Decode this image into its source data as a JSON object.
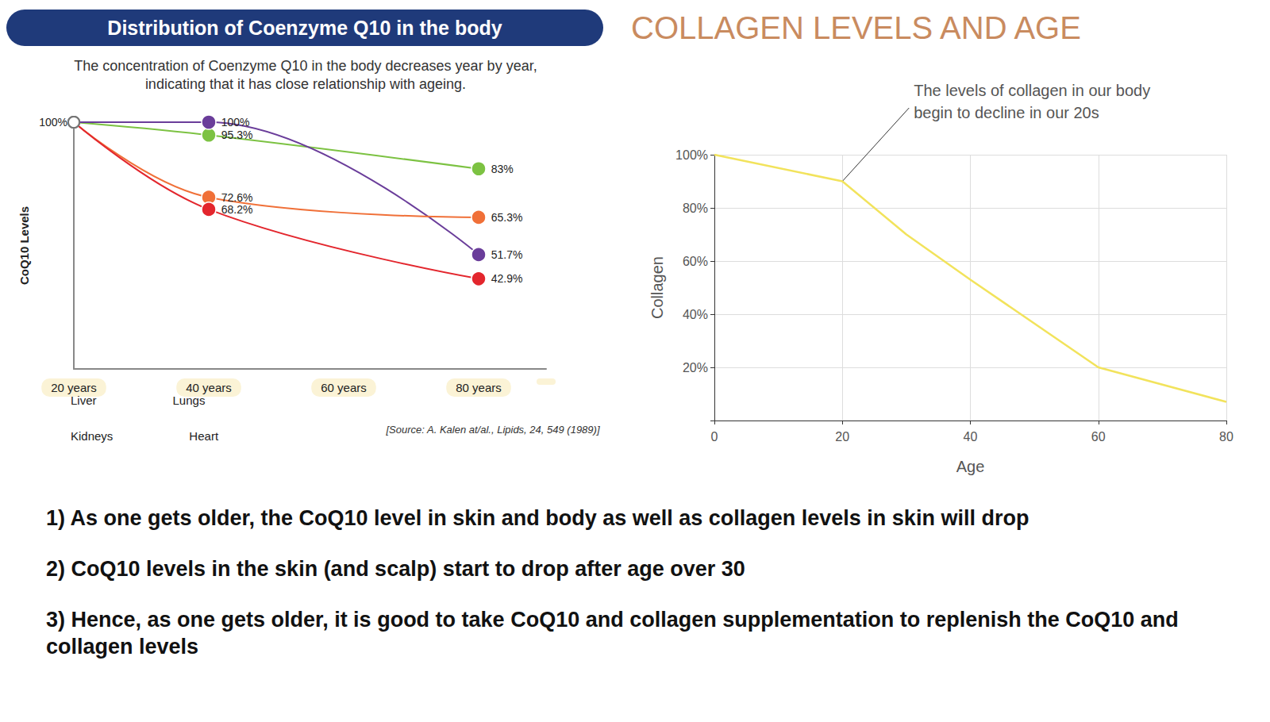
{
  "chart_data": [
    {
      "type": "line",
      "title": "Distribution of Coenzyme Q10 in the body",
      "subtitle": "The concentration of Coenzyme Q10 in the body decreases year by year, indicating that it has close relationship with ageing.",
      "ylabel": "CoQ10 Levels",
      "source": "[Source: A. Kalen at/al., Lipids, 24, 549 (1989)]",
      "x": [
        20,
        40,
        80
      ],
      "xlim": [
        20,
        90
      ],
      "xticks": [
        {
          "value": 20,
          "label": "20 years"
        },
        {
          "value": 40,
          "label": "40 years"
        },
        {
          "value": 60,
          "label": "60 years"
        },
        {
          "value": 80,
          "label": "80 years"
        }
      ],
      "ylim": [
        10,
        100
      ],
      "yticks": [
        {
          "value": 100,
          "label": "100%"
        }
      ],
      "grid": false,
      "legend": "bottom-left",
      "data_labels": true,
      "marker": "circle",
      "series": [
        {
          "name": "Liver",
          "color": "#7cc242",
          "values": [
            100,
            95.3,
            83
          ],
          "value_labels": [
            null,
            "95.3%",
            "83%"
          ]
        },
        {
          "name": "Lungs",
          "color": "#6a3d9a",
          "values": [
            100,
            100,
            51.7
          ],
          "value_labels": [
            null,
            "100%",
            "51.7%"
          ]
        },
        {
          "name": "Kidneys",
          "color": "#f07038",
          "values": [
            100,
            72.6,
            65.3
          ],
          "value_labels": [
            null,
            "72.6%",
            "65.3%"
          ]
        },
        {
          "name": "Heart",
          "color": "#e3262d",
          "values": [
            100,
            68.2,
            42.9
          ],
          "value_labels": [
            null,
            "68.2%",
            "42.9%"
          ]
        }
      ]
    },
    {
      "type": "line",
      "title": "COLLAGEN LEVELS AND AGE",
      "annotation": "The levels of collagen in our body begin to decline in our 20s",
      "annotation_at": [
        20,
        90
      ],
      "xlabel": "Age",
      "ylabel": "Collagen",
      "x": [
        0,
        20,
        30,
        40,
        60,
        80
      ],
      "values": [
        100,
        90,
        70,
        53,
        20,
        7
      ],
      "color": "#f2e35c",
      "xlim": [
        0,
        80
      ],
      "xticks": [
        0,
        20,
        40,
        60,
        80
      ],
      "ylim": [
        0,
        100
      ],
      "yticks": [
        {
          "value": 20,
          "label": "20%"
        },
        {
          "value": 40,
          "label": "40%"
        },
        {
          "value": 60,
          "label": "60%"
        },
        {
          "value": 80,
          "label": "80%"
        },
        {
          "value": 100,
          "label": "100%"
        }
      ],
      "grid": true
    }
  ],
  "notes": [
    "1) As one gets older, the CoQ10 level in skin and body as well as collagen levels in skin will drop",
    "2) CoQ10 levels in the skin (and scalp) start to drop after age over 30",
    "3) Hence, as one gets older, it is good to take CoQ10 and collagen supplementation to replenish the CoQ10 and collagen levels"
  ]
}
